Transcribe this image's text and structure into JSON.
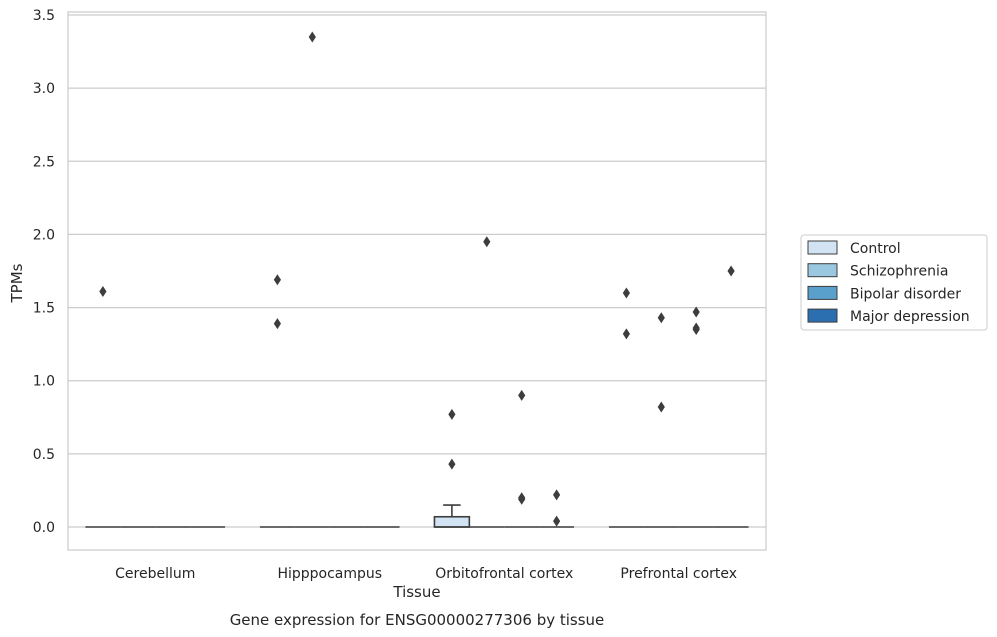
{
  "chart_data": {
    "type": "box",
    "caption": "Gene expression for ENSG00000277306 by tissue",
    "xlabel": "Tissue",
    "ylabel": "TPMs",
    "ylim": [
      -0.16,
      3.53
    ],
    "yticks": [
      "0.0",
      "0.5",
      "1.0",
      "1.5",
      "2.0",
      "2.5",
      "3.0",
      "3.5"
    ],
    "ytick_values": [
      0,
      0.5,
      1.0,
      1.5,
      2.0,
      2.5,
      3.0,
      3.5
    ],
    "grid": true,
    "legend_position": "right",
    "categories": [
      "Cerebellum",
      "Hipppocampus",
      "Orbitofrontal cortex",
      "Prefrontal cortex"
    ],
    "series": [
      {
        "name": "Control",
        "color": "#d2e3f3",
        "boxes": [
          {
            "category": "Cerebellum",
            "q1": 0,
            "median": 0,
            "q3": 0,
            "whisker_low": 0,
            "whisker_high": 0,
            "outliers": [
              1.61
            ]
          },
          {
            "category": "Hipppocampus",
            "q1": 0,
            "median": 0,
            "q3": 0,
            "whisker_low": 0,
            "whisker_high": 0,
            "outliers": [
              1.69,
              1.39
            ]
          },
          {
            "category": "Orbitofrontal cortex",
            "q1": 0,
            "median": 0,
            "q3": 0.07,
            "whisker_low": 0,
            "whisker_high": 0.15,
            "outliers": [
              0.77,
              0.43
            ]
          },
          {
            "category": "Prefrontal cortex",
            "q1": 0,
            "median": 0,
            "q3": 0,
            "whisker_low": 0,
            "whisker_high": 0,
            "outliers": [
              1.6,
              1.32
            ]
          }
        ]
      },
      {
        "name": "Schizophrenia",
        "color": "#9ac8e0",
        "boxes": [
          {
            "category": "Cerebellum",
            "q1": 0,
            "median": 0,
            "q3": 0,
            "whisker_low": 0,
            "whisker_high": 0,
            "outliers": []
          },
          {
            "category": "Hipppocampus",
            "q1": 0,
            "median": 0,
            "q3": 0,
            "whisker_low": 0,
            "whisker_high": 0,
            "outliers": [
              3.35
            ]
          },
          {
            "category": "Orbitofrontal cortex",
            "q1": 0,
            "median": 0,
            "q3": 0,
            "whisker_low": 0,
            "whisker_high": 0,
            "outliers": [
              1.95
            ]
          },
          {
            "category": "Prefrontal cortex",
            "q1": 0,
            "median": 0,
            "q3": 0,
            "whisker_low": 0,
            "whisker_high": 0,
            "outliers": [
              1.43,
              0.82
            ]
          }
        ]
      },
      {
        "name": "Bipolar disorder",
        "color": "#5aa0cc",
        "boxes": [
          {
            "category": "Cerebellum",
            "q1": 0,
            "median": 0,
            "q3": 0,
            "whisker_low": 0,
            "whisker_high": 0,
            "outliers": []
          },
          {
            "category": "Hipppocampus",
            "q1": 0,
            "median": 0,
            "q3": 0,
            "whisker_low": 0,
            "whisker_high": 0,
            "outliers": []
          },
          {
            "category": "Orbitofrontal cortex",
            "q1": 0,
            "median": 0,
            "q3": 0,
            "whisker_low": 0,
            "whisker_high": 0,
            "outliers": [
              0.9,
              0.2,
              0.19
            ]
          },
          {
            "category": "Prefrontal cortex",
            "q1": 0,
            "median": 0,
            "q3": 0,
            "whisker_low": 0,
            "whisker_high": 0,
            "outliers": [
              1.47,
              1.36,
              1.35
            ]
          }
        ]
      },
      {
        "name": "Major depression",
        "color": "#2c6fb0",
        "boxes": [
          {
            "category": "Cerebellum",
            "q1": 0,
            "median": 0,
            "q3": 0,
            "whisker_low": 0,
            "whisker_high": 0,
            "outliers": []
          },
          {
            "category": "Hipppocampus",
            "q1": 0,
            "median": 0,
            "q3": 0,
            "whisker_low": 0,
            "whisker_high": 0,
            "outliers": []
          },
          {
            "category": "Orbitofrontal cortex",
            "q1": 0,
            "median": 0,
            "q3": 0,
            "whisker_low": 0,
            "whisker_high": 0,
            "outliers": [
              0.22,
              0.04
            ]
          },
          {
            "category": "Prefrontal cortex",
            "q1": 0,
            "median": 0,
            "q3": 0,
            "whisker_low": 0,
            "whisker_high": 0,
            "outliers": [
              1.75
            ]
          }
        ]
      }
    ]
  }
}
